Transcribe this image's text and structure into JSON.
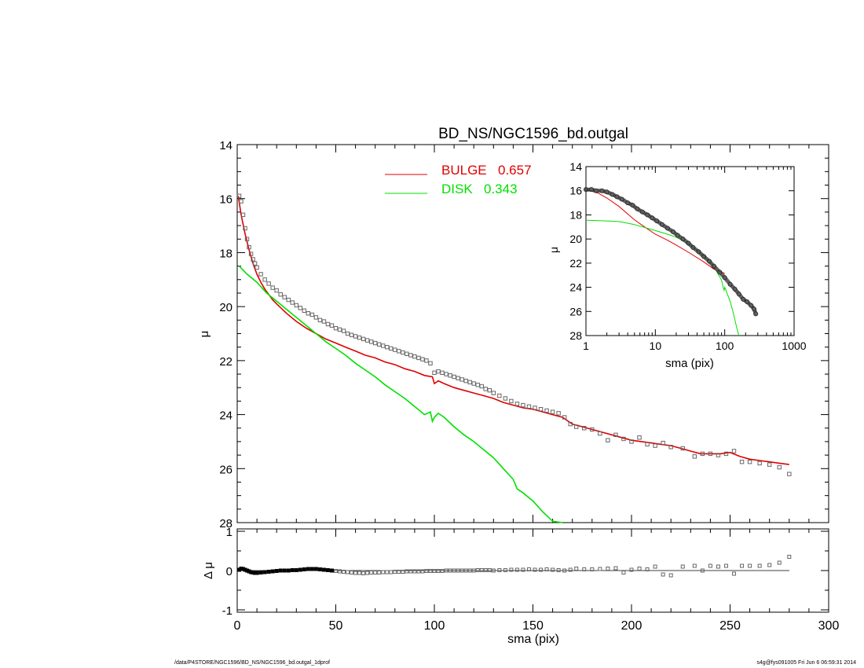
{
  "chart_data": [
    {
      "type": "line",
      "title": "BD_NS/NGC1596_bd.outgal",
      "xlabel": "",
      "ylabel": "μ",
      "xlim": [
        0,
        300
      ],
      "ylim": [
        28,
        14
      ],
      "x_ticks": [
        0,
        50,
        100,
        150,
        200,
        250,
        300
      ],
      "y_ticks": [
        14,
        16,
        18,
        20,
        22,
        24,
        26,
        28
      ],
      "legend": {
        "placement": "top-center",
        "entries": [
          {
            "name": "BULGE",
            "value": "0.657",
            "color": "#e00000"
          },
          {
            "name": "DISK",
            "value": "0.343",
            "color": "#00e000"
          }
        ]
      },
      "series": [
        {
          "name": "BULGE",
          "color": "#e00000",
          "style": "line",
          "x": [
            0.5,
            2,
            4,
            6,
            8,
            10,
            12,
            14,
            16,
            18,
            20,
            25,
            30,
            35,
            40,
            45,
            50,
            55,
            60,
            65,
            70,
            75,
            80,
            85,
            90,
            95,
            99,
            100,
            102,
            105,
            110,
            115,
            120,
            125,
            130,
            135,
            140,
            145,
            150,
            155,
            160,
            165,
            170,
            175,
            180,
            185,
            190,
            195,
            200,
            205,
            210,
            215,
            220,
            225,
            230,
            235,
            240,
            245,
            250,
            255,
            260,
            265,
            270,
            275,
            280
          ],
          "y": [
            15.9,
            16.6,
            17.3,
            17.9,
            18.4,
            18.8,
            19.1,
            19.35,
            19.55,
            19.75,
            19.9,
            20.25,
            20.55,
            20.8,
            21.0,
            21.2,
            21.35,
            21.5,
            21.65,
            21.8,
            21.9,
            22.05,
            22.15,
            22.3,
            22.4,
            22.55,
            22.6,
            22.85,
            22.75,
            22.85,
            23.0,
            23.1,
            23.2,
            23.3,
            23.4,
            23.55,
            23.65,
            23.75,
            23.8,
            23.9,
            24.0,
            24.1,
            24.35,
            24.45,
            24.55,
            24.65,
            24.75,
            24.85,
            24.95,
            25.0,
            25.05,
            25.1,
            25.15,
            25.25,
            25.35,
            25.45,
            25.45,
            25.45,
            25.4,
            25.55,
            25.65,
            25.7,
            25.75,
            25.8,
            25.85
          ]
        },
        {
          "name": "DISK",
          "color": "#00e000",
          "style": "line",
          "x": [
            1,
            5,
            10,
            15,
            20,
            25,
            30,
            35,
            40,
            45,
            50,
            55,
            60,
            65,
            70,
            75,
            80,
            85,
            90,
            95,
            98,
            99,
            100,
            102,
            105,
            110,
            115,
            120,
            125,
            130,
            135,
            140,
            142,
            145,
            150,
            155,
            160,
            165
          ],
          "y": [
            18.5,
            18.8,
            19.1,
            19.5,
            19.8,
            20.1,
            20.4,
            20.7,
            21.0,
            21.3,
            21.55,
            21.8,
            22.1,
            22.35,
            22.6,
            22.9,
            23.15,
            23.4,
            23.7,
            24.0,
            23.9,
            24.25,
            24.1,
            23.95,
            24.1,
            24.45,
            24.75,
            25.0,
            25.3,
            25.6,
            26.0,
            26.4,
            26.75,
            26.9,
            27.2,
            27.6,
            27.95,
            28.0
          ]
        },
        {
          "name": "",
          "color": "#666666",
          "style": "squares",
          "x": [
            1,
            2,
            3,
            4,
            5,
            6,
            7,
            8,
            9,
            10,
            12,
            14,
            16,
            18,
            20,
            22,
            24,
            26,
            28,
            30,
            32,
            34,
            36,
            38,
            40,
            42,
            44,
            46,
            48,
            50,
            52,
            54,
            56,
            58,
            60,
            62,
            64,
            66,
            68,
            70,
            72,
            74,
            76,
            78,
            80,
            82,
            84,
            86,
            88,
            90,
            92,
            94,
            96,
            98,
            100,
            102,
            104,
            106,
            108,
            110,
            112,
            114,
            116,
            118,
            120,
            122,
            124,
            126,
            128,
            130,
            133,
            136,
            139,
            142,
            145,
            148,
            151,
            154,
            157,
            160,
            163,
            166,
            169,
            172,
            176,
            180,
            184,
            188,
            192,
            196,
            200,
            204,
            208,
            212,
            216,
            220,
            226,
            232,
            236,
            240,
            244,
            248,
            252,
            256,
            260,
            265,
            270,
            275,
            280
          ],
          "y": [
            15.9,
            16.1,
            16.6,
            17.1,
            17.5,
            17.8,
            18.05,
            18.25,
            18.4,
            18.55,
            18.8,
            19.0,
            19.15,
            19.3,
            19.4,
            19.55,
            19.65,
            19.75,
            19.85,
            19.95,
            20.05,
            20.15,
            20.25,
            20.3,
            20.4,
            20.5,
            20.55,
            20.65,
            20.7,
            20.8,
            20.85,
            20.9,
            21.0,
            21.05,
            21.1,
            21.15,
            21.2,
            21.25,
            21.3,
            21.35,
            21.4,
            21.45,
            21.5,
            21.55,
            21.6,
            21.65,
            21.7,
            21.75,
            21.8,
            21.85,
            21.9,
            21.95,
            22.0,
            22.1,
            22.45,
            22.4,
            22.45,
            22.5,
            22.55,
            22.6,
            22.65,
            22.7,
            22.75,
            22.8,
            22.85,
            22.9,
            22.95,
            23.05,
            23.1,
            23.2,
            23.3,
            23.4,
            23.5,
            23.6,
            23.65,
            23.7,
            23.75,
            23.8,
            23.85,
            23.9,
            23.95,
            24.1,
            24.35,
            24.45,
            24.5,
            24.55,
            24.7,
            24.95,
            24.75,
            24.9,
            25.0,
            24.85,
            25.1,
            25.15,
            25.05,
            25.2,
            25.25,
            25.55,
            25.45,
            25.45,
            25.5,
            25.45,
            25.35,
            25.75,
            25.75,
            25.8,
            25.85,
            25.95,
            26.2
          ]
        }
      ]
    },
    {
      "type": "scatter",
      "title": "",
      "xlabel": "sma (pix)",
      "ylabel": "Δ μ",
      "xlim": [
        0,
        300
      ],
      "ylim": [
        -1.05,
        1.05
      ],
      "x_ticks": [
        0,
        50,
        100,
        150,
        200,
        250,
        300
      ],
      "y_ticks": [
        -1,
        0,
        1
      ],
      "series": [
        {
          "name": "",
          "color": "#666666",
          "style": "squares",
          "x": [
            1,
            2,
            3,
            4,
            5,
            6,
            7,
            8,
            9,
            10,
            12,
            14,
            16,
            18,
            20,
            22,
            24,
            26,
            28,
            30,
            32,
            34,
            36,
            38,
            40,
            42,
            44,
            46,
            48,
            50,
            52,
            54,
            56,
            58,
            60,
            62,
            64,
            66,
            68,
            70,
            72,
            74,
            76,
            78,
            80,
            82,
            84,
            86,
            88,
            90,
            92,
            94,
            96,
            98,
            100,
            102,
            104,
            106,
            108,
            110,
            112,
            114,
            116,
            118,
            120,
            122,
            124,
            126,
            128,
            130,
            133,
            136,
            139,
            142,
            145,
            148,
            151,
            154,
            157,
            160,
            163,
            166,
            169,
            172,
            176,
            180,
            184,
            188,
            192,
            196,
            200,
            204,
            208,
            212,
            216,
            220,
            226,
            232,
            236,
            240,
            244,
            248,
            252,
            256,
            260,
            265,
            270,
            275,
            280
          ],
          "y": [
            0.02,
            0.05,
            0.04,
            0.02,
            0.0,
            -0.02,
            -0.04,
            -0.05,
            -0.06,
            -0.06,
            -0.05,
            -0.04,
            -0.03,
            -0.02,
            -0.01,
            0.0,
            0.0,
            0.0,
            0.01,
            0.01,
            0.02,
            0.03,
            0.04,
            0.04,
            0.04,
            0.03,
            0.02,
            0.01,
            0.0,
            -0.01,
            -0.02,
            -0.03,
            -0.04,
            -0.05,
            -0.06,
            -0.06,
            -0.07,
            -0.06,
            -0.05,
            -0.05,
            -0.05,
            -0.04,
            -0.04,
            -0.04,
            -0.03,
            -0.03,
            -0.03,
            -0.02,
            -0.02,
            -0.02,
            -0.02,
            -0.02,
            -0.01,
            -0.01,
            -0.01,
            -0.01,
            -0.01,
            0.0,
            0.0,
            0.0,
            0.0,
            0.0,
            0.0,
            0.0,
            0.0,
            0.01,
            0.01,
            0.01,
            0.01,
            0.0,
            0.01,
            0.01,
            0.02,
            0.02,
            0.02,
            0.03,
            0.02,
            0.02,
            0.03,
            0.02,
            0.01,
            0.0,
            0.02,
            0.05,
            0.03,
            0.03,
            0.04,
            0.05,
            0.06,
            -0.05,
            0.02,
            0.05,
            0.03,
            0.1,
            -0.1,
            -0.12,
            0.1,
            0.12,
            0.0,
            0.12,
            0.1,
            0.12,
            -0.08,
            0.12,
            0.12,
            0.12,
            0.14,
            0.2,
            0.35
          ]
        }
      ]
    },
    {
      "type": "line",
      "title": "",
      "xlabel": "sma (pix)",
      "ylabel": "μ",
      "x_scale": "log",
      "xlim": [
        1,
        1000
      ],
      "ylim": [
        28,
        14
      ],
      "x_ticks": [
        "1",
        "10",
        "100",
        "1000"
      ],
      "y_ticks": [
        14,
        16,
        18,
        20,
        22,
        24,
        26,
        28
      ],
      "series": [
        {
          "name": "BULGE",
          "color": "#e00000",
          "style": "line",
          "x": [
            1,
            1.5,
            2,
            3,
            5,
            7,
            10,
            15,
            20,
            30,
            50,
            70,
            100
          ],
          "y": [
            15.9,
            16.2,
            16.6,
            17.3,
            18.4,
            19.0,
            19.6,
            20.1,
            20.5,
            21.1,
            21.9,
            22.5,
            22.85
          ]
        },
        {
          "name": "DISK",
          "color": "#00e000",
          "style": "line",
          "x": [
            1,
            2,
            3,
            5,
            10,
            15,
            20,
            30,
            50,
            70,
            90,
            95,
            98,
            100,
            102,
            110,
            120,
            130,
            140,
            150,
            160
          ],
          "y": [
            18.45,
            18.5,
            18.55,
            18.8,
            19.3,
            19.6,
            19.85,
            20.4,
            21.4,
            22.3,
            23.4,
            24.0,
            24.25,
            24.0,
            24.1,
            24.6,
            25.2,
            25.9,
            26.7,
            27.4,
            28.0
          ]
        },
        {
          "name": "",
          "color": "#555555",
          "style": "circles",
          "x": [
            1,
            1.2,
            1.4,
            1.7,
            2,
            2.4,
            2.8,
            3.3,
            4,
            4.7,
            5.5,
            6.5,
            7.7,
            9,
            10.5,
            12.5,
            15,
            18,
            21,
            25,
            30,
            35,
            42,
            50,
            60,
            70,
            85,
            100,
            120,
            140,
            160,
            185,
            210,
            240,
            265,
            280
          ],
          "y": [
            15.9,
            15.9,
            16.0,
            16.0,
            16.1,
            16.3,
            16.5,
            16.7,
            17.0,
            17.2,
            17.5,
            17.75,
            18.0,
            18.25,
            18.5,
            18.8,
            19.1,
            19.4,
            19.7,
            20.0,
            20.35,
            20.7,
            21.05,
            21.45,
            21.85,
            22.25,
            22.75,
            23.2,
            23.75,
            24.15,
            24.55,
            25.0,
            25.2,
            25.5,
            25.8,
            26.2
          ]
        }
      ]
    }
  ],
  "footer": {
    "left": "/data/P4STORE/NGC1596/BD_NS/NGC1596_bd.outgal_1dprof",
    "right": "s4g@fys091005  Fri Jun  6 06:59:31 2014"
  }
}
